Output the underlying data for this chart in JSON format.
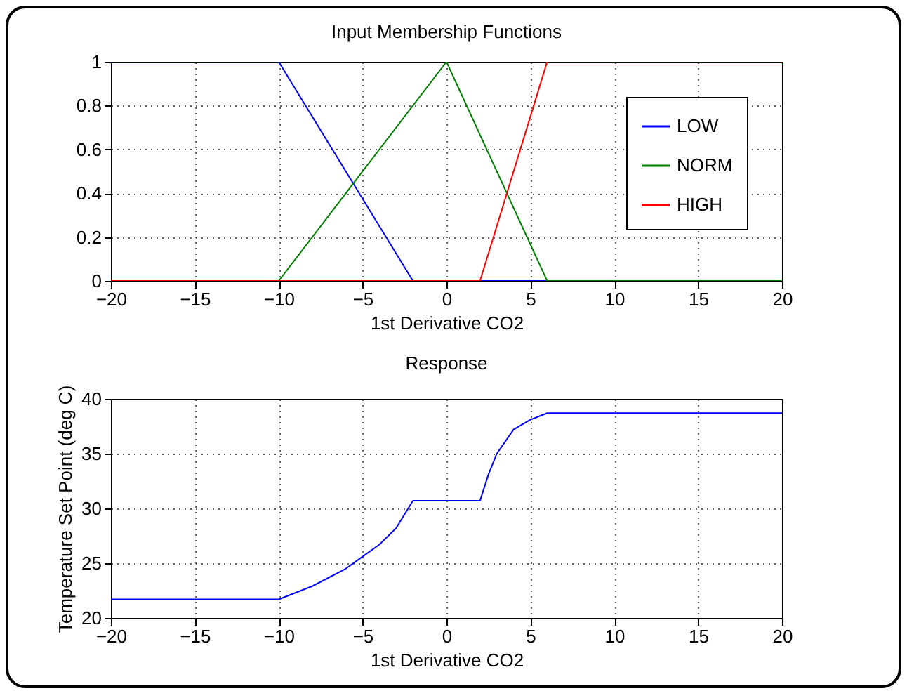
{
  "chart_data": [
    {
      "type": "line",
      "title": "Input Membership Functions",
      "xlabel": "1st Derivative CO2",
      "xlim": [
        -20,
        20
      ],
      "xticks": [
        -20,
        -15,
        -10,
        -5,
        0,
        5,
        10,
        15,
        20
      ],
      "ylim": [
        0,
        1
      ],
      "yticks": [
        0,
        0.2,
        0.4,
        0.6,
        0.8,
        1
      ],
      "grid": true,
      "legend": "top right",
      "series": [
        {
          "name": "LOW",
          "color": "#0000ff",
          "x": [
            -20,
            -10,
            -2,
            20
          ],
          "values": [
            1,
            1,
            0,
            0
          ]
        },
        {
          "name": "NORM",
          "color": "#008000",
          "x": [
            -20,
            -10,
            0,
            6,
            20
          ],
          "values": [
            0,
            0,
            1,
            0,
            0
          ]
        },
        {
          "name": "HIGH",
          "color": "#ff0000",
          "x": [
            -20,
            2,
            6,
            20
          ],
          "values": [
            0,
            0,
            1,
            1
          ]
        }
      ]
    },
    {
      "type": "line",
      "title": "Response",
      "xlabel": "1st Derivative CO2",
      "ylabel": "Temperature Set Point (deg C)",
      "xlim": [
        -20,
        20
      ],
      "xticks": [
        -20,
        -15,
        -10,
        -5,
        0,
        5,
        10,
        15,
        20
      ],
      "ylim": [
        20,
        40
      ],
      "yticks": [
        20,
        25,
        30,
        35,
        40
      ],
      "grid": true,
      "series": [
        {
          "color": "#0000ff",
          "x": [
            -20,
            -10,
            -8,
            -6,
            -5,
            -4,
            -3,
            -2,
            2,
            2.5,
            3,
            4,
            5,
            6,
            20
          ],
          "values": [
            21.7,
            21.7,
            22.9,
            24.5,
            25.6,
            26.7,
            28.2,
            30.7,
            30.7,
            33.1,
            35.0,
            37.2,
            38.1,
            38.7,
            38.7
          ]
        }
      ]
    }
  ]
}
